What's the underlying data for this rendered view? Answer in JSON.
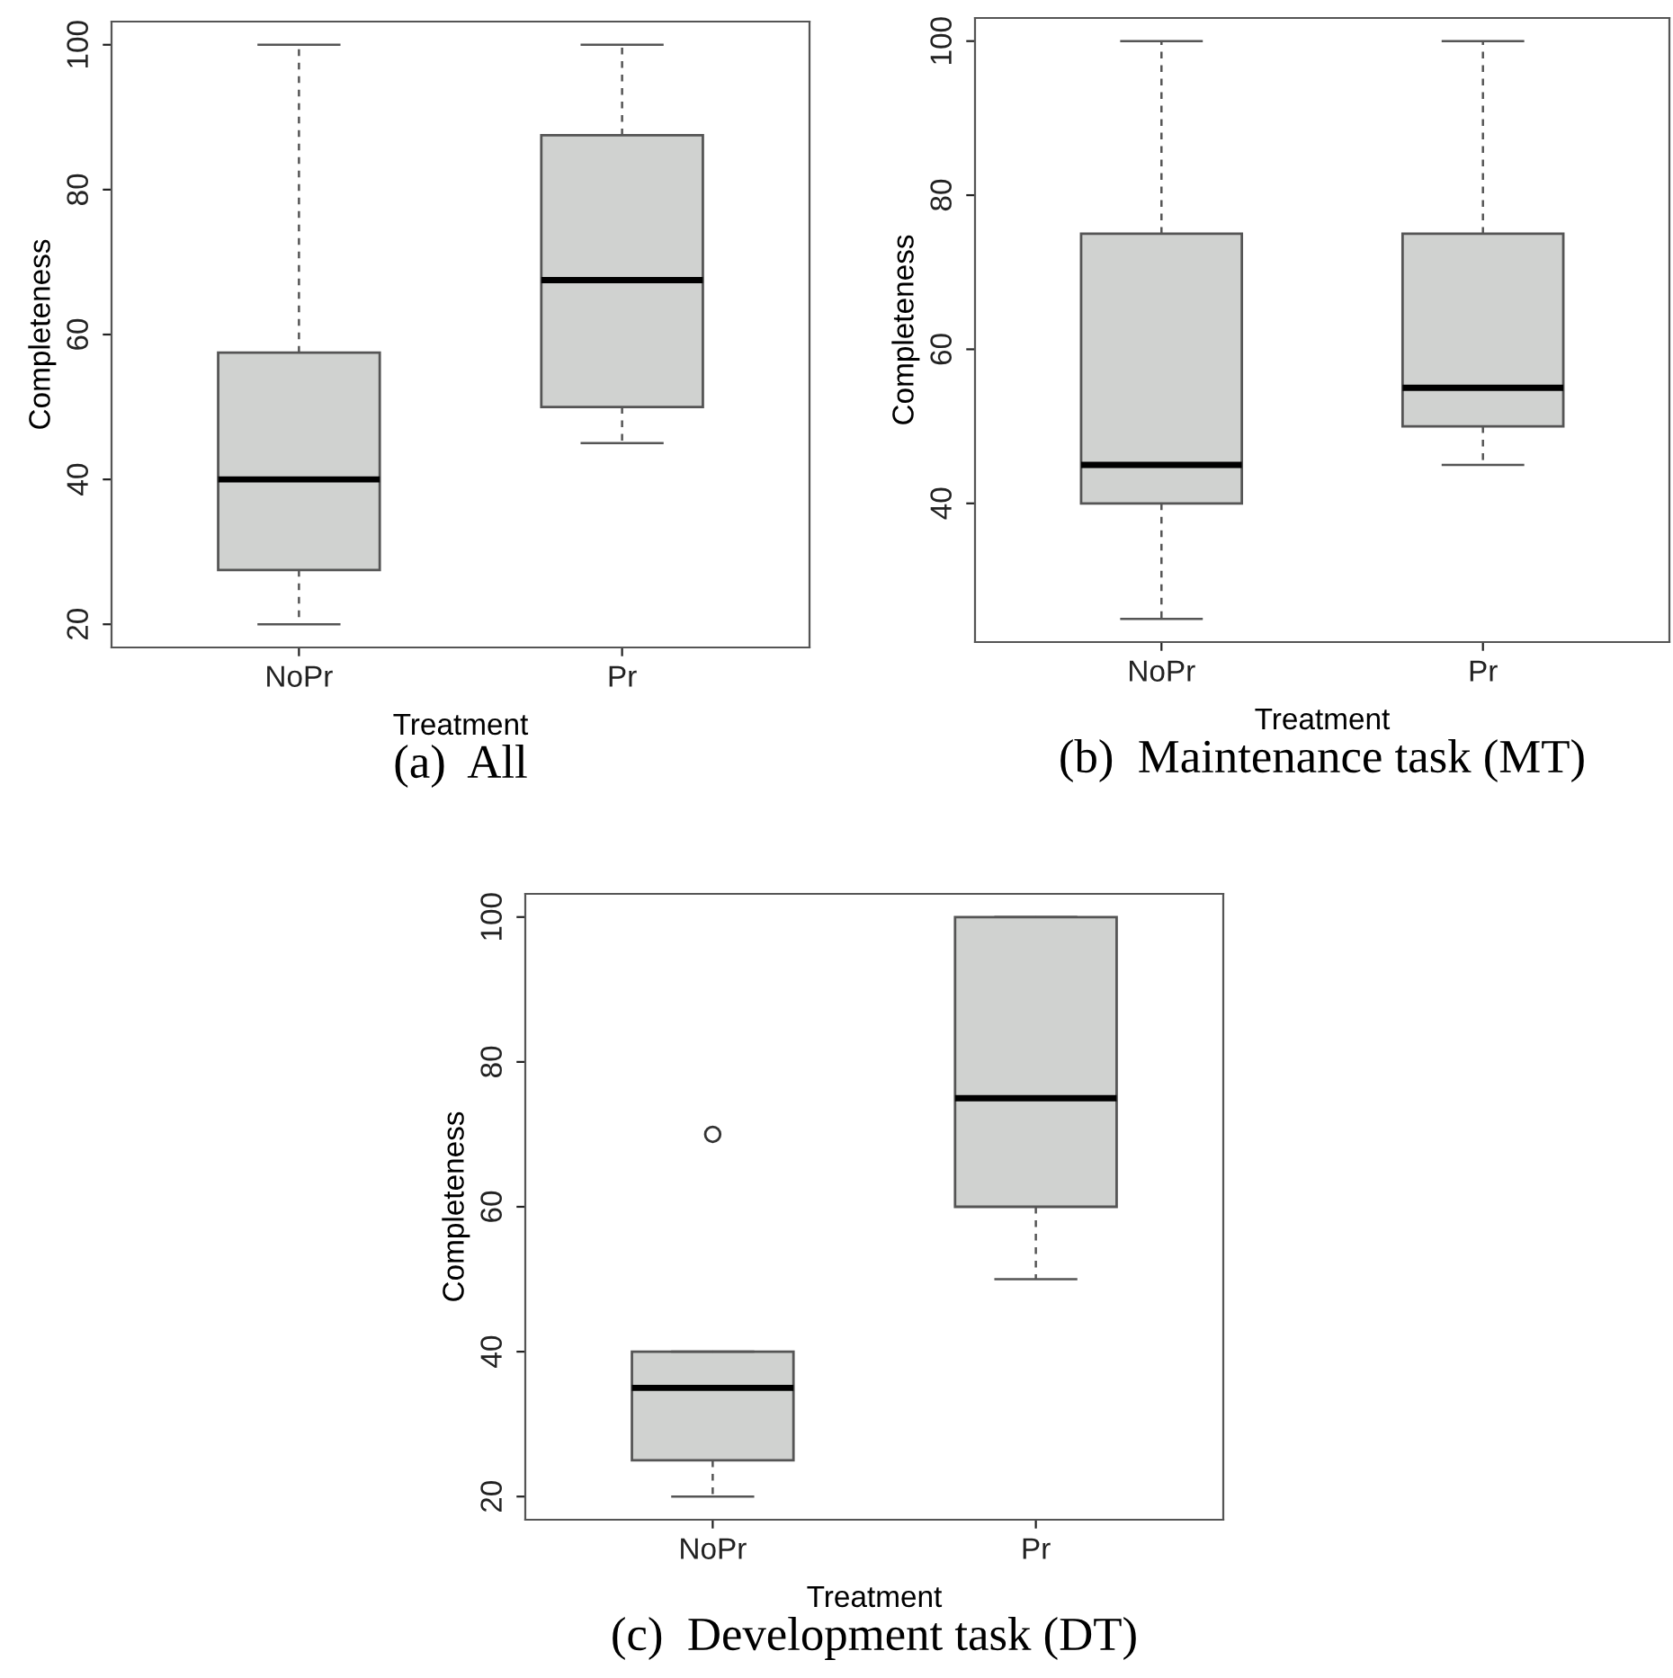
{
  "chart_data": [
    {
      "type": "box",
      "title": "(a)  All",
      "xlabel": "Treatment",
      "ylabel": "Completeness",
      "categories": [
        "NoPr",
        "Pr"
      ],
      "color": "#d0d2d0",
      "grid": false,
      "ylim": [
        16.8,
        103.2
      ],
      "yticks": [
        20,
        40,
        60,
        80,
        100
      ],
      "boxes": [
        {
          "low": 20,
          "q1": 27.5,
          "median": 40,
          "q3": 57.5,
          "high": 100
        },
        {
          "low": 45,
          "q1": 50,
          "median": 67.5,
          "q3": 87.5,
          "high": 100
        }
      ]
    },
    {
      "type": "box",
      "title": "(b)  Maintenance task (MT)",
      "xlabel": "Treatment",
      "ylabel": "Completeness",
      "categories": [
        "NoPr",
        "Pr"
      ],
      "color": "#d0d2d0",
      "grid": false,
      "ylim": [
        22,
        103
      ],
      "yticks": [
        40,
        60,
        80,
        100
      ],
      "boxes": [
        {
          "low": 25,
          "q1": 40,
          "median": 45,
          "q3": 75,
          "high": 100
        },
        {
          "low": 45,
          "q1": 50,
          "median": 55,
          "q3": 75,
          "high": 100
        }
      ]
    },
    {
      "type": "box",
      "title": "(c)  Development task (DT)",
      "xlabel": "Treatment",
      "ylabel": "Completeness",
      "categories": [
        "NoPr",
        "Pr"
      ],
      "color": "#d0d2d0",
      "grid": false,
      "ylim": [
        16.8,
        103.2
      ],
      "yticks": [
        20,
        40,
        60,
        80,
        100
      ],
      "boxes": [
        {
          "low": 20,
          "q1": 25,
          "median": 35,
          "q3": 40,
          "high": 40,
          "outliers": [
            70
          ]
        },
        {
          "low": 50,
          "q1": 60,
          "median": 75,
          "q3": 100,
          "high": 100
        }
      ]
    }
  ]
}
